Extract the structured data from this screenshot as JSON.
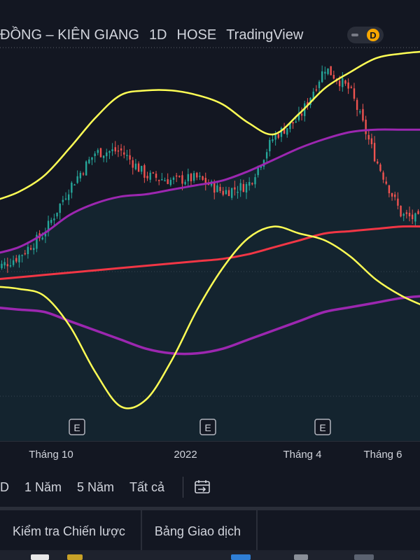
{
  "header": {
    "symbol_name": "ĐỒNG – KIÊN GIANG",
    "interval": "1D",
    "exchange": "HOSE",
    "provider": "TradingView",
    "badge": "D"
  },
  "colors": {
    "background": "#131722",
    "bollinger": "#ffff55",
    "ma_purple": "#9c27b0",
    "ma_red": "#f23645",
    "up": "#26a69a",
    "down": "#ef5350"
  },
  "chart_data": {
    "type": "line",
    "title": "",
    "x_labels": [
      "Tháng 10",
      "2022",
      "Tháng 4",
      "Tháng 6"
    ],
    "earnings_markers": [
      "E",
      "E",
      "E"
    ],
    "note": "price scale not visible in screenshot; series values are relative levels (0–100)",
    "series": [
      {
        "role": "bollinger-upper",
        "values": [
          44,
          48,
          55,
          67,
          80,
          90,
          92,
          92,
          90,
          86,
          78,
          73,
          82,
          93,
          100,
          106,
          108,
          109
        ]
      },
      {
        "role": "bollinger-middle",
        "values": [
          21,
          24,
          30,
          38,
          43,
          46,
          47,
          49,
          51,
          53,
          57,
          62,
          67,
          71,
          74,
          75,
          75,
          75
        ]
      },
      {
        "role": "bollinger-lower",
        "values": [
          7,
          6,
          3,
          -10,
          -30,
          -45,
          -42,
          -25,
          -3,
          15,
          28,
          33,
          30,
          27,
          20,
          10,
          3,
          -2
        ]
      },
      {
        "role": "ma-long",
        "values": [
          10,
          11,
          12,
          13,
          14,
          15,
          16,
          17,
          18,
          19,
          21,
          24,
          27,
          30,
          31,
          32,
          33,
          33
        ]
      },
      {
        "role": "ma-slow",
        "values": [
          -2,
          -3,
          -4,
          -8,
          -12,
          -16,
          -20,
          -22,
          -22,
          -20,
          -16,
          -12,
          -8,
          -4,
          -2,
          0,
          2,
          3
        ]
      },
      {
        "role": "price",
        "values": [
          14,
          20,
          30,
          50,
          65,
          66,
          55,
          53,
          54,
          48,
          51,
          72,
          80,
          102,
          92,
          62,
          38,
          35
        ]
      }
    ]
  },
  "ranges": {
    "items": [
      "D",
      "1 Năm",
      "5 Năm",
      "Tất cả"
    ]
  },
  "tabs": {
    "items": [
      "Kiểm tra Chiến lược",
      "Bảng Giao dịch"
    ]
  }
}
